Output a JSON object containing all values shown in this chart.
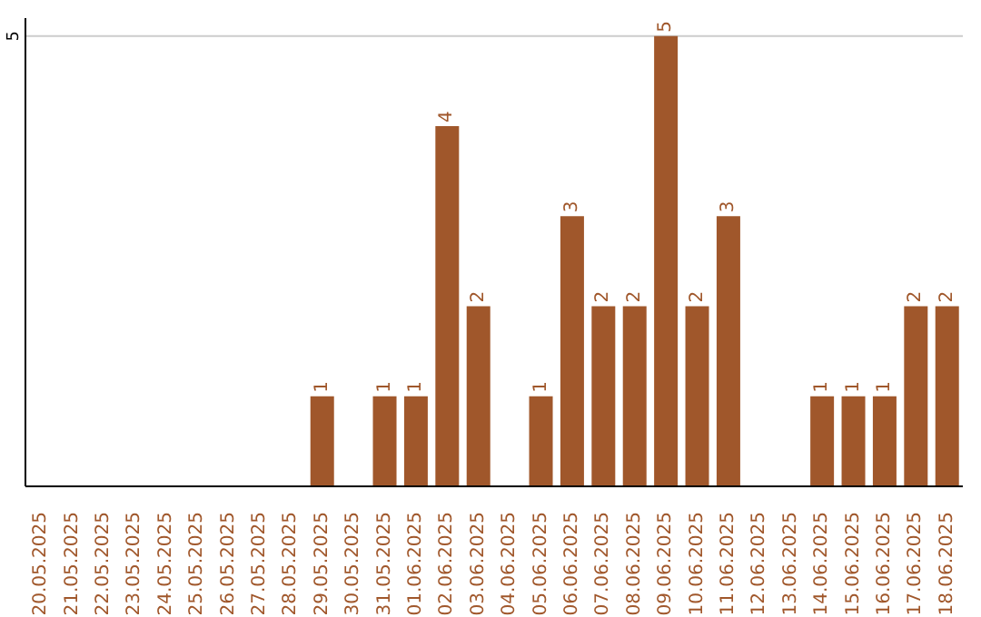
{
  "chart_data": {
    "type": "bar",
    "categories": [
      "20.05.2025",
      "21.05.2025",
      "22.05.2025",
      "23.05.2025",
      "24.05.2025",
      "25.05.2025",
      "26.05.2025",
      "27.05.2025",
      "28.05.2025",
      "29.05.2025",
      "30.05.2025",
      "31.05.2025",
      "01.06.2025",
      "02.06.2025",
      "03.06.2025",
      "04.06.2025",
      "05.06.2025",
      "06.06.2025",
      "07.06.2025",
      "08.06.2025",
      "09.06.2025",
      "10.06.2025",
      "11.06.2025",
      "12.06.2025",
      "13.06.2025",
      "14.06.2025",
      "15.06.2025",
      "16.06.2025",
      "17.06.2025",
      "18.06.2025"
    ],
    "values": [
      0,
      0,
      0,
      0,
      0,
      0,
      0,
      0,
      0,
      1,
      0,
      1,
      1,
      4,
      2,
      0,
      1,
      3,
      2,
      2,
      5,
      2,
      3,
      0,
      0,
      1,
      1,
      1,
      2,
      2
    ],
    "value_labels": [
      null,
      null,
      null,
      null,
      null,
      null,
      null,
      null,
      null,
      "1",
      null,
      "1",
      "1",
      "4",
      "2",
      null,
      "1",
      "3",
      "2",
      "2",
      "5",
      "2",
      "3",
      null,
      null,
      "1",
      "1",
      "1",
      "2",
      "2"
    ],
    "color": "#a0572b",
    "ylim": [
      0,
      5.2
    ],
    "yticks": [
      5
    ],
    "grid": "y"
  }
}
